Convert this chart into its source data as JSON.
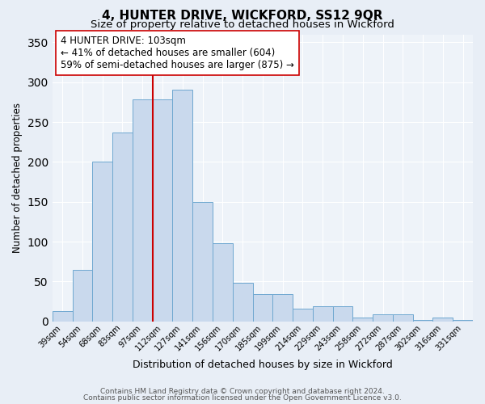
{
  "title": "4, HUNTER DRIVE, WICKFORD, SS12 9QR",
  "subtitle": "Size of property relative to detached houses in Wickford",
  "xlabel": "Distribution of detached houses by size in Wickford",
  "ylabel": "Number of detached properties",
  "bar_labels": [
    "39sqm",
    "54sqm",
    "68sqm",
    "83sqm",
    "97sqm",
    "112sqm",
    "127sqm",
    "141sqm",
    "156sqm",
    "170sqm",
    "185sqm",
    "199sqm",
    "214sqm",
    "229sqm",
    "243sqm",
    "258sqm",
    "272sqm",
    "287sqm",
    "302sqm",
    "316sqm",
    "331sqm"
  ],
  "bar_values": [
    13,
    65,
    200,
    237,
    278,
    278,
    291,
    150,
    98,
    48,
    34,
    34,
    16,
    19,
    19,
    5,
    9,
    9,
    2,
    5,
    2
  ],
  "bar_color": "#c9d9ed",
  "bar_edge_color": "#6fa8d0",
  "vline_color": "#cc0000",
  "annotation_text": "4 HUNTER DRIVE: 103sqm\n← 41% of detached houses are smaller (604)\n59% of semi-detached houses are larger (875) →",
  "ylim": [
    0,
    360
  ],
  "yticks": [
    0,
    50,
    100,
    150,
    200,
    250,
    300,
    350
  ],
  "footnote1": "Contains HM Land Registry data © Crown copyright and database right 2024.",
  "footnote2": "Contains public sector information licensed under the Open Government Licence v3.0.",
  "bg_color": "#e8eef6",
  "plot_bg_color": "#eef3f9",
  "grid_color": "#ffffff",
  "title_fontsize": 11,
  "subtitle_fontsize": 9.5,
  "annotation_fontsize": 8.5,
  "footnote_fontsize": 6.5
}
